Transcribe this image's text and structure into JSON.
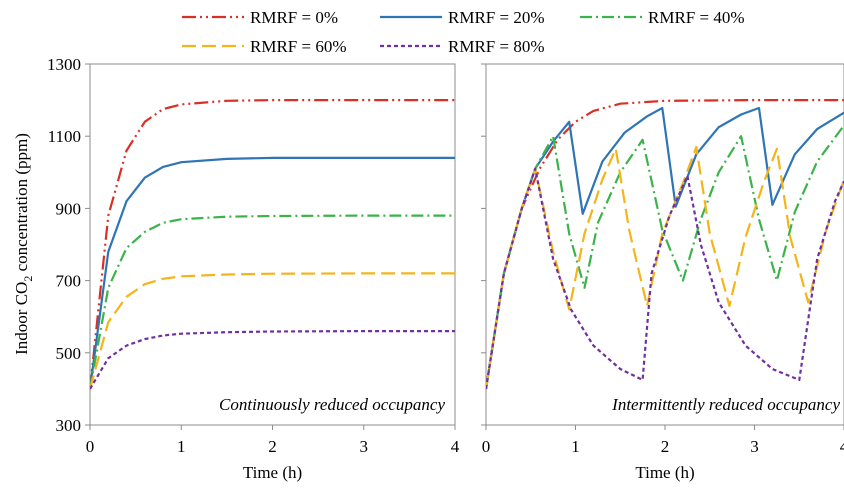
{
  "figure": {
    "ylabel_main": "Indoor CO",
    "ylabel_sub": "2",
    "ylabel_rest": " concentration (ppm)",
    "xlabel": "Time (h)"
  },
  "chart_data": [
    {
      "type": "line",
      "title": "Continuously reduced occupancy",
      "xlabel": "Time (h)",
      "ylabel": "Indoor CO2 concentration (ppm)",
      "xlim": [
        0,
        4
      ],
      "ylim": [
        300,
        1300
      ],
      "xticks": [
        0,
        1,
        2,
        3,
        4
      ],
      "yticks": [
        300,
        500,
        700,
        900,
        1100,
        1300
      ],
      "grid": false,
      "legend": "top",
      "series": [
        {
          "name": "RMRF = 0%",
          "color": "#d93025",
          "dash": "14 4 2 4 2 4",
          "x": [
            0,
            0.2,
            0.4,
            0.6,
            0.8,
            1.0,
            1.5,
            2.0,
            3.0,
            4.0
          ],
          "y": [
            400,
            880,
            1060,
            1140,
            1175,
            1188,
            1198,
            1200,
            1200,
            1200
          ]
        },
        {
          "name": "RMRF = 20%",
          "color": "#2e75b6",
          "dash": "",
          "x": [
            0,
            0.2,
            0.4,
            0.6,
            0.8,
            1.0,
            1.5,
            2.0,
            3.0,
            4.0
          ],
          "y": [
            400,
            780,
            920,
            985,
            1015,
            1028,
            1037,
            1040,
            1040,
            1040
          ]
        },
        {
          "name": "RMRF = 40%",
          "color": "#3cb34a",
          "dash": "12 4 2 4",
          "x": [
            0,
            0.2,
            0.4,
            0.6,
            0.8,
            1.0,
            1.5,
            2.0,
            3.0,
            4.0
          ],
          "y": [
            400,
            680,
            790,
            835,
            860,
            870,
            877,
            879,
            880,
            880
          ]
        },
        {
          "name": "RMRF = 60%",
          "color": "#f4b41a",
          "dash": "14 6",
          "x": [
            0,
            0.2,
            0.4,
            0.6,
            0.8,
            1.0,
            1.5,
            2.0,
            3.0,
            4.0
          ],
          "y": [
            400,
            585,
            655,
            690,
            705,
            712,
            717,
            719,
            720,
            720
          ]
        },
        {
          "name": "RMRF = 80%",
          "color": "#7030a0",
          "dash": "4 3",
          "x": [
            0,
            0.2,
            0.4,
            0.6,
            0.8,
            1.0,
            1.5,
            2.0,
            3.0,
            4.0
          ],
          "y": [
            400,
            485,
            520,
            538,
            548,
            553,
            557,
            559,
            560,
            560
          ]
        }
      ]
    },
    {
      "type": "line",
      "title": "Intermittently reduced occupancy",
      "xlabel": "Time (h)",
      "xlim": [
        0,
        4
      ],
      "ylim": [
        300,
        1300
      ],
      "xticks": [
        0,
        1,
        2,
        3,
        4
      ],
      "yticks": [
        300,
        500,
        700,
        900,
        1100,
        1300
      ],
      "grid": false,
      "series": [
        {
          "name": "RMRF = 0%",
          "x": [
            0,
            0.2,
            0.4,
            0.6,
            0.8,
            1.0,
            1.2,
            1.5,
            2.0,
            3.0,
            4.0
          ],
          "y": [
            400,
            720,
            900,
            1010,
            1090,
            1140,
            1170,
            1190,
            1198,
            1200,
            1200
          ]
        },
        {
          "name": "RMRF = 20%",
          "x": [
            0,
            0.2,
            0.4,
            0.55,
            0.75,
            0.93,
            1.08,
            1.3,
            1.55,
            1.8,
            1.97,
            2.12,
            2.35,
            2.6,
            2.85,
            3.05,
            3.2,
            3.45,
            3.7,
            4.0
          ],
          "y": [
            400,
            720,
            900,
            1010,
            1085,
            1140,
            885,
            1030,
            1110,
            1155,
            1178,
            905,
            1050,
            1125,
            1160,
            1178,
            910,
            1050,
            1120,
            1165
          ]
        },
        {
          "name": "RMRF = 40%",
          "x": [
            0,
            0.2,
            0.4,
            0.55,
            0.75,
            0.93,
            1.1,
            1.25,
            1.5,
            1.75,
            1.97,
            2.2,
            2.4,
            2.6,
            2.85,
            3.05,
            3.25,
            3.45,
            3.7,
            4.0
          ],
          "y": [
            400,
            720,
            900,
            1010,
            1100,
            830,
            680,
            860,
            1000,
            1090,
            840,
            700,
            870,
            1000,
            1100,
            870,
            700,
            890,
            1030,
            1130
          ]
        },
        {
          "name": "RMRF = 60%",
          "x": [
            0,
            0.2,
            0.4,
            0.55,
            0.75,
            0.93,
            1.1,
            1.3,
            1.45,
            1.6,
            1.8,
            1.97,
            2.2,
            2.35,
            2.5,
            2.72,
            2.9,
            3.1,
            3.25,
            3.4,
            3.6,
            3.8,
            4.0
          ],
          "y": [
            400,
            720,
            900,
            1010,
            780,
            620,
            830,
            980,
            1065,
            840,
            630,
            830,
            970,
            1070,
            830,
            630,
            820,
            970,
            1065,
            820,
            640,
            840,
            980
          ]
        },
        {
          "name": "RMRF = 80%",
          "x": [
            0,
            0.2,
            0.4,
            0.55,
            0.75,
            0.95,
            1.2,
            1.5,
            1.75,
            1.85,
            2.05,
            2.25,
            2.4,
            2.6,
            2.9,
            3.2,
            3.5,
            3.7,
            3.9,
            4.0
          ],
          "y": [
            400,
            720,
            900,
            1010,
            760,
            620,
            520,
            455,
            425,
            720,
            880,
            990,
            800,
            640,
            520,
            455,
            425,
            760,
            920,
            975
          ]
        }
      ]
    }
  ]
}
